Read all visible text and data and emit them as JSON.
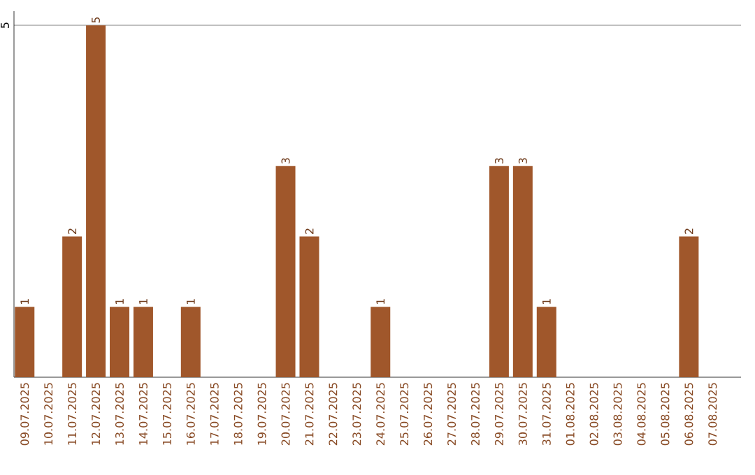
{
  "chart_data": {
    "type": "bar",
    "categories": [
      "09.07.2025",
      "10.07.2025",
      "11.07.2025",
      "12.07.2025",
      "13.07.2025",
      "14.07.2025",
      "15.07.2025",
      "16.07.2025",
      "17.07.2025",
      "18.07.2025",
      "19.07.2025",
      "20.07.2025",
      "21.07.2025",
      "22.07.2025",
      "23.07.2025",
      "24.07.2025",
      "25.07.2025",
      "26.07.2025",
      "27.07.2025",
      "28.07.2025",
      "29.07.2025",
      "30.07.2025",
      "31.07.2025",
      "01.08.2025",
      "02.08.2025",
      "03.08.2025",
      "04.08.2025",
      "05.08.2025",
      "06.08.2025",
      "07.08.2025"
    ],
    "values": [
      1,
      0,
      2,
      5,
      1,
      1,
      0,
      1,
      0,
      0,
      0,
      3,
      2,
      0,
      0,
      1,
      0,
      0,
      0,
      0,
      3,
      3,
      1,
      0,
      0,
      0,
      0,
      0,
      2,
      0
    ],
    "color": "#a0572b",
    "value_labels": [
      "1",
      null,
      "2",
      "5",
      "1",
      "1",
      null,
      "1",
      null,
      null,
      null,
      "3",
      "2",
      null,
      null,
      "1",
      null,
      null,
      null,
      null,
      "3",
      "3",
      "1",
      null,
      null,
      null,
      null,
      null,
      "2",
      null
    ],
    "ylim": [
      0,
      5.2
    ],
    "yticks": [
      5
    ],
    "grid": "y"
  }
}
